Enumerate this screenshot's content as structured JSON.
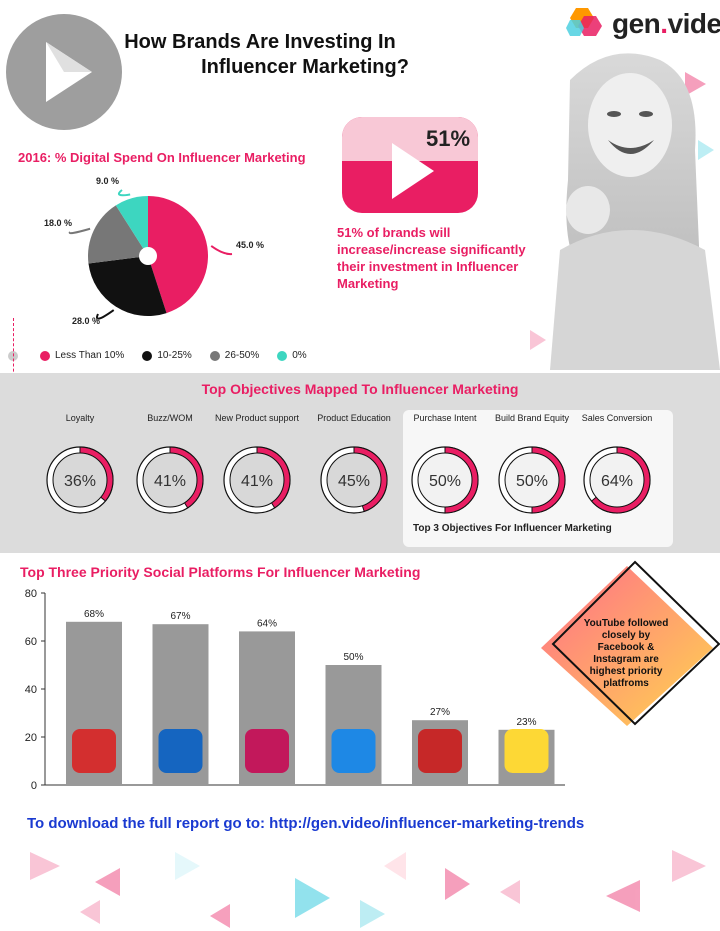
{
  "header": {
    "title_line1": "How Brands Are Investing In",
    "title_line2": "Influencer Marketing?",
    "logo_prefix": "gen",
    "logo_dot": ".",
    "logo_suffix": "video"
  },
  "stat": {
    "value": "51%",
    "text": "51% of brands will increase/increase significantly their investment in Influencer Marketing"
  },
  "colors": {
    "accent": "#e91e63",
    "dark": "#111111",
    "gray": "#777777",
    "teal": "#3dd6c0",
    "bar": "#999999",
    "link": "#1a3ad1"
  },
  "objectives_title": "Top Objectives Mapped To Influencer Marketing",
  "objectives_footer": "Top 3 Objectives For Influencer Marketing",
  "platforms_title": "Top Three Priority Social Platforms For Influencer Marketing",
  "note": "YouTube followed closely by Facebook & Instagram are highest priority platfroms",
  "download": "To download the full report go to:  http://gen.video/influencer-marketing-trends",
  "chart_data": [
    {
      "type": "pie",
      "title": "2016: % Digital Spend On Influencer Marketing",
      "slices": [
        {
          "label": "Less Than 10%",
          "value": 45.0,
          "display": "45.0 %",
          "color": "#e91e63"
        },
        {
          "label": "10-25%",
          "value": 28.0,
          "display": "28.0 %",
          "color": "#111111"
        },
        {
          "label": "26-50%",
          "value": 18.0,
          "display": "18.0 %",
          "color": "#777777"
        },
        {
          "label": "0%",
          "value": 9.0,
          "display": "9.0 %",
          "color": "#3dd6c0"
        }
      ],
      "legend_position": "bottom"
    },
    {
      "type": "donut-set",
      "items": [
        {
          "label": "Loyalty",
          "value": 36,
          "display": "36%"
        },
        {
          "label": "Buzz/WOM",
          "value": 41,
          "display": "41%"
        },
        {
          "label": "New Product support",
          "value": 41,
          "display": "41%"
        },
        {
          "label": "Product Education",
          "value": 45,
          "display": "45%"
        },
        {
          "label": "Purchase Intent",
          "value": 50,
          "display": "50%"
        },
        {
          "label": "Build Brand Equity",
          "value": 50,
          "display": "50%"
        },
        {
          "label": "Sales Conversion",
          "value": 64,
          "display": "64%"
        }
      ]
    },
    {
      "type": "bar",
      "title": "Top Three Priority Social Platforms For Influencer Marketing",
      "categories": [
        "YouTube",
        "Facebook",
        "Instagram",
        "Twitter",
        "Pinterest",
        "Snapchat"
      ],
      "values": [
        68,
        67,
        64,
        50,
        27,
        23
      ],
      "labels": [
        "68%",
        "67%",
        "64%",
        "50%",
        "27%",
        "23%"
      ],
      "ylim": [
        0,
        80
      ],
      "yticks": [
        "0",
        "20",
        "40",
        "60",
        "80"
      ],
      "grid": false
    }
  ]
}
